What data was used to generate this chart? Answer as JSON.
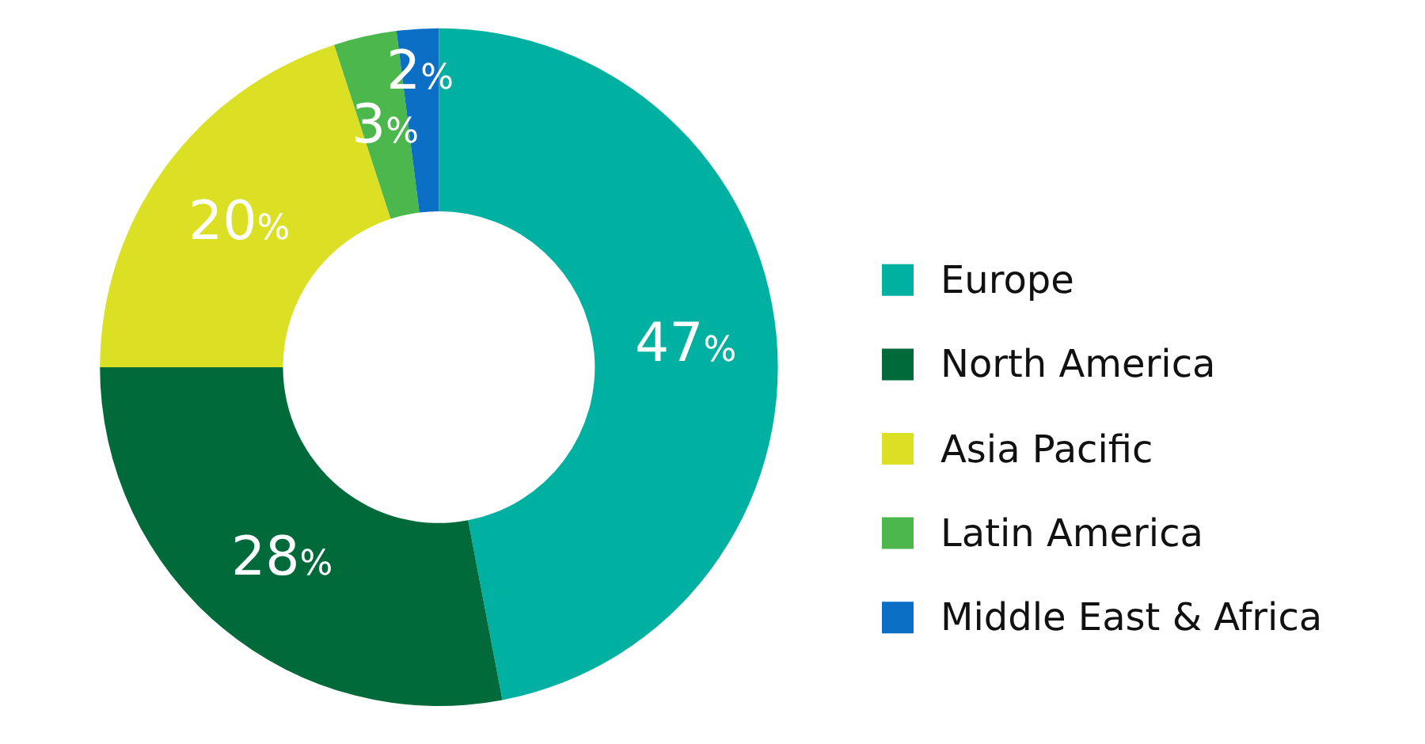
{
  "chart_data": {
    "type": "donut",
    "categories": [
      "Europe",
      "North America",
      "Asia Pacific",
      "Latin America",
      "Middle East & Africa"
    ],
    "values": [
      47,
      28,
      20,
      3,
      2
    ],
    "colors": [
      "#00b0a0",
      "#006a3a",
      "#dbe024",
      "#4cb74d",
      "#0a6fc5"
    ],
    "value_labels": [
      "47%",
      "28%",
      "20%",
      "3%",
      "2%"
    ],
    "legend": "right"
  }
}
